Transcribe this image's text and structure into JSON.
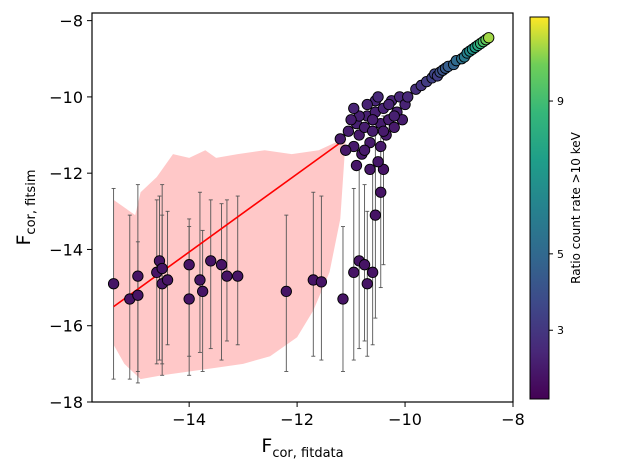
{
  "chart_data": {
    "type": "scatter",
    "xlabel": "F",
    "xlabel_sub": "cor, fitdata",
    "ylabel": "F",
    "ylabel_sub": "cor, fitsim",
    "xlim": [
      -15.8,
      -8.0
    ],
    "ylim": [
      -18.0,
      -7.8
    ],
    "xticks": [
      -14,
      -12,
      -10,
      -8
    ],
    "yticks": [
      -18,
      -16,
      -14,
      -12,
      -10,
      -8
    ],
    "xtick_labels": [
      "−14",
      "−12",
      "−10",
      "−8"
    ],
    "ytick_labels": [
      "−18",
      "−16",
      "−14",
      "−12",
      "−10",
      "−8"
    ],
    "grid": false,
    "fit_line": {
      "x": [
        -15.4,
        -11.1
      ],
      "y": [
        -15.5,
        -11.1
      ],
      "color": "#ff0000"
    },
    "confidence_band": {
      "upper": [
        [
          -15.4,
          -12.7
        ],
        [
          -15.0,
          -13.1
        ],
        [
          -14.9,
          -12.5
        ],
        [
          -14.6,
          -12.1
        ],
        [
          -14.5,
          -11.9
        ],
        [
          -14.3,
          -11.5
        ],
        [
          -14.0,
          -11.6
        ],
        [
          -13.7,
          -11.4
        ],
        [
          -13.5,
          -11.6
        ],
        [
          -13.1,
          -11.5
        ],
        [
          -12.6,
          -11.4
        ],
        [
          -12.1,
          -11.5
        ],
        [
          -11.6,
          -11.4
        ],
        [
          -11.3,
          -11.2
        ],
        [
          -11.1,
          -11.05
        ]
      ],
      "lower": [
        [
          -11.1,
          -11.1
        ],
        [
          -11.2,
          -13.2
        ],
        [
          -11.4,
          -14.6
        ],
        [
          -11.7,
          -15.6
        ],
        [
          -12.0,
          -16.3
        ],
        [
          -12.5,
          -16.8
        ],
        [
          -13.0,
          -17.0
        ],
        [
          -13.5,
          -17.1
        ],
        [
          -14.0,
          -17.2
        ],
        [
          -14.5,
          -17.3
        ],
        [
          -14.9,
          -17.4
        ],
        [
          -15.2,
          -17.0
        ],
        [
          -15.4,
          -16.5
        ]
      ],
      "color": "#ff9a9a"
    },
    "colorbar": {
      "label": "Ratio count rate >10 keV",
      "ticks": [
        3,
        5,
        9
      ],
      "tick_labels": [
        "3",
        "5",
        "9"
      ],
      "min": 1.2,
      "max": 11.2,
      "colormap": "viridis"
    },
    "errorbar_points": [
      {
        "x": -15.4,
        "y": -14.9,
        "lo": -17.4,
        "hi": -12.4,
        "c": 1.8
      },
      {
        "x": -15.1,
        "y": -15.3,
        "lo": -17.4,
        "hi": -13.1,
        "c": 1.8
      },
      {
        "x": -14.95,
        "y": -15.2,
        "lo": -17.5,
        "hi": -13.8,
        "c": 1.8
      },
      {
        "x": -14.95,
        "y": -14.7,
        "lo": -17.2,
        "hi": -12.3,
        "c": 1.8
      },
      {
        "x": -14.6,
        "y": -14.6,
        "lo": -17.0,
        "hi": -12.7,
        "c": 1.8
      },
      {
        "x": -14.55,
        "y": -14.3,
        "lo": -16.9,
        "hi": -12.6,
        "c": 1.8
      },
      {
        "x": -14.5,
        "y": -14.9,
        "lo": -17.3,
        "hi": -12.3,
        "c": 1.8
      },
      {
        "x": -14.5,
        "y": -14.5,
        "lo": -17.0,
        "hi": -13.1,
        "c": 1.8
      },
      {
        "x": -14.4,
        "y": -14.8,
        "lo": -16.5,
        "hi": -13.0,
        "c": 1.8
      },
      {
        "x": -14.0,
        "y": -14.4,
        "lo": -16.8,
        "hi": -13.2,
        "c": 1.8
      },
      {
        "x": -14.0,
        "y": -15.3,
        "lo": -17.3,
        "hi": -13.4,
        "c": 1.8
      },
      {
        "x": -13.8,
        "y": -14.8,
        "lo": -16.7,
        "hi": -12.5,
        "c": 1.8
      },
      {
        "x": -13.75,
        "y": -15.1,
        "lo": -17.2,
        "hi": -13.5,
        "c": 1.8
      },
      {
        "x": -13.6,
        "y": -14.3,
        "lo": -16.6,
        "hi": -12.7,
        "c": 1.8
      },
      {
        "x": -13.4,
        "y": -14.4,
        "lo": -16.9,
        "hi": -12.8,
        "c": 1.8
      },
      {
        "x": -13.3,
        "y": -14.7,
        "lo": -16.4,
        "hi": -12.7,
        "c": 1.8
      },
      {
        "x": -13.1,
        "y": -14.7,
        "lo": -16.5,
        "hi": -12.6,
        "c": 1.8
      },
      {
        "x": -12.2,
        "y": -15.1,
        "lo": -17.2,
        "hi": -13.1,
        "c": 1.8
      },
      {
        "x": -11.7,
        "y": -14.8,
        "lo": -16.8,
        "hi": -12.5,
        "c": 1.8
      },
      {
        "x": -11.55,
        "y": -14.85,
        "lo": -16.9,
        "hi": -12.6,
        "c": 1.8
      },
      {
        "x": -11.15,
        "y": -15.3,
        "lo": -17.2,
        "hi": -13.4,
        "c": 1.8
      },
      {
        "x": -10.95,
        "y": -14.6,
        "lo": -16.9,
        "hi": -12.4,
        "c": 1.8
      },
      {
        "x": -10.85,
        "y": -14.3,
        "lo": -16.6,
        "hi": -11.8,
        "c": 1.8
      },
      {
        "x": -10.75,
        "y": -14.4,
        "lo": -16.4,
        "hi": -12.3,
        "c": 1.8
      },
      {
        "x": -10.7,
        "y": -14.9,
        "lo": -16.8,
        "hi": -13.0,
        "c": 1.8
      },
      {
        "x": -10.6,
        "y": -14.6,
        "lo": -16.5,
        "hi": -11.9,
        "c": 1.8
      },
      {
        "x": -10.55,
        "y": -13.1,
        "lo": -15.8,
        "hi": -10.8,
        "c": 1.8
      },
      {
        "x": -10.45,
        "y": -12.5,
        "lo": -15.0,
        "hi": -10.6,
        "c": 1.8
      },
      {
        "x": -10.4,
        "y": -11.9,
        "lo": -14.4,
        "hi": -10.5,
        "c": 1.8
      }
    ],
    "cluster_points": [
      {
        "x": -11.2,
        "y": -11.1,
        "c": 2.0
      },
      {
        "x": -11.05,
        "y": -10.9,
        "c": 2.1
      },
      {
        "x": -10.95,
        "y": -11.3,
        "c": 2.0
      },
      {
        "x": -10.9,
        "y": -10.7,
        "c": 2.2
      },
      {
        "x": -10.85,
        "y": -11.0,
        "c": 2.0
      },
      {
        "x": -10.8,
        "y": -11.5,
        "c": 1.9
      },
      {
        "x": -10.75,
        "y": -10.8,
        "c": 2.1
      },
      {
        "x": -10.7,
        "y": -10.5,
        "c": 2.2
      },
      {
        "x": -10.65,
        "y": -11.2,
        "c": 2.0
      },
      {
        "x": -10.6,
        "y": -10.9,
        "c": 2.1
      },
      {
        "x": -10.55,
        "y": -10.4,
        "c": 2.2
      },
      {
        "x": -10.5,
        "y": -11.7,
        "c": 1.9
      },
      {
        "x": -10.45,
        "y": -10.7,
        "c": 2.1
      },
      {
        "x": -10.4,
        "y": -10.3,
        "c": 2.3
      },
      {
        "x": -10.35,
        "y": -11.0,
        "c": 2.0
      },
      {
        "x": -10.3,
        "y": -10.6,
        "c": 2.1
      },
      {
        "x": -10.25,
        "y": -10.1,
        "c": 2.3
      },
      {
        "x": -10.2,
        "y": -10.8,
        "c": 2.0
      },
      {
        "x": -10.15,
        "y": -10.4,
        "c": 2.2
      },
      {
        "x": -10.1,
        "y": -10.0,
        "c": 2.4
      },
      {
        "x": -10.05,
        "y": -10.6,
        "c": 2.1
      },
      {
        "x": -10.0,
        "y": -10.2,
        "c": 2.3
      },
      {
        "x": -10.55,
        "y": -10.1,
        "c": 2.4
      },
      {
        "x": -10.7,
        "y": -10.2,
        "c": 2.3
      },
      {
        "x": -10.85,
        "y": -10.5,
        "c": 2.2
      },
      {
        "x": -11.0,
        "y": -10.6,
        "c": 2.1
      },
      {
        "x": -10.9,
        "y": -11.8,
        "c": 1.9
      },
      {
        "x": -10.65,
        "y": -11.9,
        "c": 1.9
      },
      {
        "x": -10.75,
        "y": -11.4,
        "c": 2.0
      },
      {
        "x": -10.45,
        "y": -11.3,
        "c": 2.0
      },
      {
        "x": -10.3,
        "y": -10.2,
        "c": 2.3
      },
      {
        "x": -9.95,
        "y": -10.0,
        "c": 2.5
      },
      {
        "x": -10.6,
        "y": -10.6,
        "c": 2.1
      },
      {
        "x": -10.4,
        "y": -10.9,
        "c": 2.0
      },
      {
        "x": -11.1,
        "y": -11.4,
        "c": 1.9
      },
      {
        "x": -10.95,
        "y": -10.3,
        "c": 2.3
      },
      {
        "x": -10.5,
        "y": -10.0,
        "c": 2.5
      },
      {
        "x": -10.2,
        "y": -10.5,
        "c": 2.2
      }
    ],
    "tail_points": [
      {
        "x": -9.8,
        "y": -9.8,
        "c": 2.7
      },
      {
        "x": -9.7,
        "y": -9.7,
        "c": 2.9
      },
      {
        "x": -9.6,
        "y": -9.6,
        "c": 3.2
      },
      {
        "x": -9.5,
        "y": -9.5,
        "c": 3.4
      },
      {
        "x": -9.45,
        "y": -9.4,
        "c": 3.6
      },
      {
        "x": -9.4,
        "y": -9.45,
        "c": 3.3
      },
      {
        "x": -9.35,
        "y": -9.35,
        "c": 3.9
      },
      {
        "x": -9.3,
        "y": -9.3,
        "c": 4.1
      },
      {
        "x": -9.25,
        "y": -9.25,
        "c": 4.3
      },
      {
        "x": -9.2,
        "y": -9.2,
        "c": 4.5
      },
      {
        "x": -9.1,
        "y": -9.15,
        "c": 4.8
      },
      {
        "x": -9.05,
        "y": -9.05,
        "c": 5.1
      },
      {
        "x": -8.95,
        "y": -9.0,
        "c": 5.5
      },
      {
        "x": -8.9,
        "y": -8.95,
        "c": 5.8
      },
      {
        "x": -8.85,
        "y": -8.85,
        "c": 6.1
      },
      {
        "x": -8.8,
        "y": -8.8,
        "c": 6.6
      },
      {
        "x": -8.75,
        "y": -8.75,
        "c": 7.0
      },
      {
        "x": -8.7,
        "y": -8.7,
        "c": 7.5
      },
      {
        "x": -8.65,
        "y": -8.65,
        "c": 8.0
      },
      {
        "x": -8.6,
        "y": -8.6,
        "c": 8.6
      },
      {
        "x": -8.55,
        "y": -8.55,
        "c": 9.2
      },
      {
        "x": -8.5,
        "y": -8.5,
        "c": 9.8
      },
      {
        "x": -8.45,
        "y": -8.45,
        "c": 10.4
      }
    ]
  }
}
